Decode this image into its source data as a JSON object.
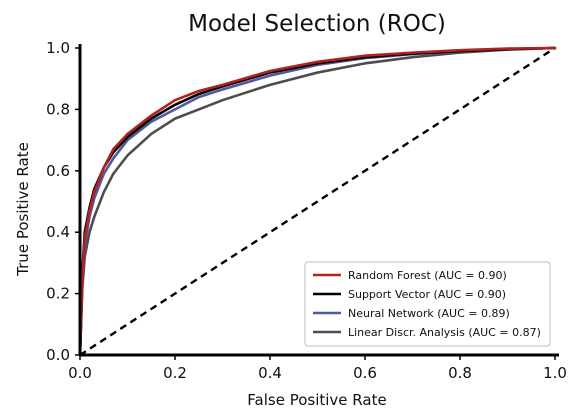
{
  "chart_data": {
    "type": "line",
    "title": "Model Selection (ROC)",
    "xlabel": "False Positive Rate",
    "ylabel": "True Positive Rate",
    "xlim": [
      0.0,
      1.0
    ],
    "ylim": [
      0.0,
      1.0
    ],
    "x_ticks": [
      "0.0",
      "0.2",
      "0.4",
      "0.6",
      "0.8",
      "1.0"
    ],
    "y_ticks": [
      "0.0",
      "0.2",
      "0.4",
      "0.6",
      "0.8",
      "1.0"
    ],
    "grid": false,
    "legend_position": "bottom-right",
    "diagonal": {
      "style": "dashed",
      "color": "#000000",
      "x": [
        0.0,
        1.0
      ],
      "y": [
        0.0,
        1.0
      ]
    },
    "series": [
      {
        "name": "Random Forest (AUC = 0.90)",
        "color": "#b22222",
        "x": [
          0,
          0.005,
          0.01,
          0.02,
          0.03,
          0.05,
          0.07,
          0.1,
          0.15,
          0.2,
          0.25,
          0.3,
          0.4,
          0.5,
          0.6,
          0.7,
          0.8,
          0.9,
          1.0
        ],
        "y": [
          0,
          0.25,
          0.38,
          0.47,
          0.53,
          0.61,
          0.67,
          0.72,
          0.78,
          0.83,
          0.86,
          0.88,
          0.925,
          0.955,
          0.975,
          0.985,
          0.993,
          0.998,
          1.0
        ]
      },
      {
        "name": "Support Vector (AUC = 0.90)",
        "color": "#000000",
        "x": [
          0,
          0.005,
          0.01,
          0.02,
          0.03,
          0.05,
          0.07,
          0.1,
          0.15,
          0.2,
          0.25,
          0.3,
          0.4,
          0.5,
          0.6,
          0.7,
          0.8,
          0.9,
          1.0
        ],
        "y": [
          0,
          0.27,
          0.4,
          0.48,
          0.54,
          0.61,
          0.66,
          0.71,
          0.77,
          0.815,
          0.85,
          0.875,
          0.92,
          0.95,
          0.97,
          0.982,
          0.99,
          0.996,
          1.0
        ]
      },
      {
        "name": "Neural Network (AUC = 0.89)",
        "color": "#5058a0",
        "x": [
          0,
          0.005,
          0.01,
          0.02,
          0.03,
          0.05,
          0.07,
          0.1,
          0.15,
          0.2,
          0.25,
          0.3,
          0.4,
          0.5,
          0.6,
          0.7,
          0.8,
          0.9,
          1.0
        ],
        "y": [
          0,
          0.24,
          0.36,
          0.45,
          0.51,
          0.59,
          0.64,
          0.7,
          0.76,
          0.8,
          0.84,
          0.865,
          0.91,
          0.945,
          0.967,
          0.98,
          0.99,
          0.996,
          1.0
        ]
      },
      {
        "name": "Linear Discr. Analysis (AUC = 0.87)",
        "color": "#4d4d4d",
        "x": [
          0,
          0.005,
          0.01,
          0.02,
          0.03,
          0.05,
          0.07,
          0.1,
          0.15,
          0.2,
          0.25,
          0.3,
          0.4,
          0.5,
          0.6,
          0.7,
          0.8,
          0.9,
          1.0
        ],
        "y": [
          0,
          0.22,
          0.32,
          0.4,
          0.45,
          0.53,
          0.59,
          0.65,
          0.72,
          0.77,
          0.8,
          0.83,
          0.88,
          0.92,
          0.95,
          0.97,
          0.985,
          0.995,
          1.0
        ]
      }
    ]
  }
}
